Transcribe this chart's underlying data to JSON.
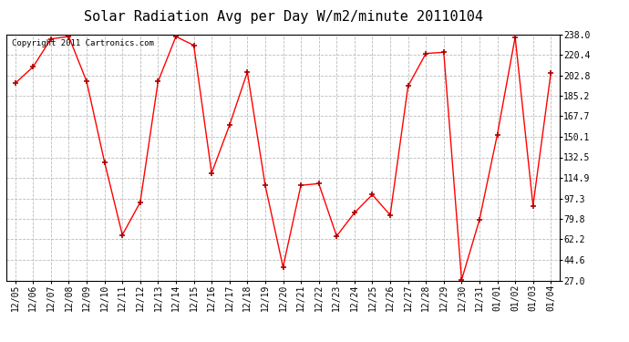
{
  "title": "Solar Radiation Avg per Day W/m2/minute 20110104",
  "copyright_text": "Copyright 2011 Cartronics.com",
  "labels": [
    "12/05",
    "12/06",
    "12/07",
    "12/08",
    "12/09",
    "12/10",
    "12/11",
    "12/12",
    "12/13",
    "12/14",
    "12/15",
    "12/16",
    "12/17",
    "12/18",
    "12/19",
    "12/20",
    "12/21",
    "12/22",
    "12/23",
    "12/24",
    "12/25",
    "12/26",
    "12/27",
    "12/28",
    "12/29",
    "12/30",
    "12/31",
    "01/01",
    "01/02",
    "01/03",
    "01/04"
  ],
  "values": [
    196.0,
    210.0,
    234.0,
    236.0,
    197.5,
    128.5,
    66.0,
    94.0,
    197.5,
    236.0,
    228.5,
    119.0,
    160.0,
    205.5,
    108.5,
    38.5,
    108.5,
    110.0,
    65.0,
    85.0,
    100.5,
    83.0,
    193.5,
    221.5,
    222.5,
    27.5,
    79.0,
    152.0,
    235.5,
    91.0,
    205.0
  ],
  "line_color": "#ff0000",
  "marker_color": "#aa0000",
  "bg_color": "#ffffff",
  "plot_bg_color": "#ffffff",
  "grid_color": "#bbbbbb",
  "yticks": [
    27.0,
    44.6,
    62.2,
    79.8,
    97.3,
    114.9,
    132.5,
    150.1,
    167.7,
    185.2,
    202.8,
    220.4,
    238.0
  ],
  "ylim": [
    27.0,
    238.0
  ],
  "title_fontsize": 11,
  "tick_fontsize": 7,
  "copyright_fontsize": 6.5
}
